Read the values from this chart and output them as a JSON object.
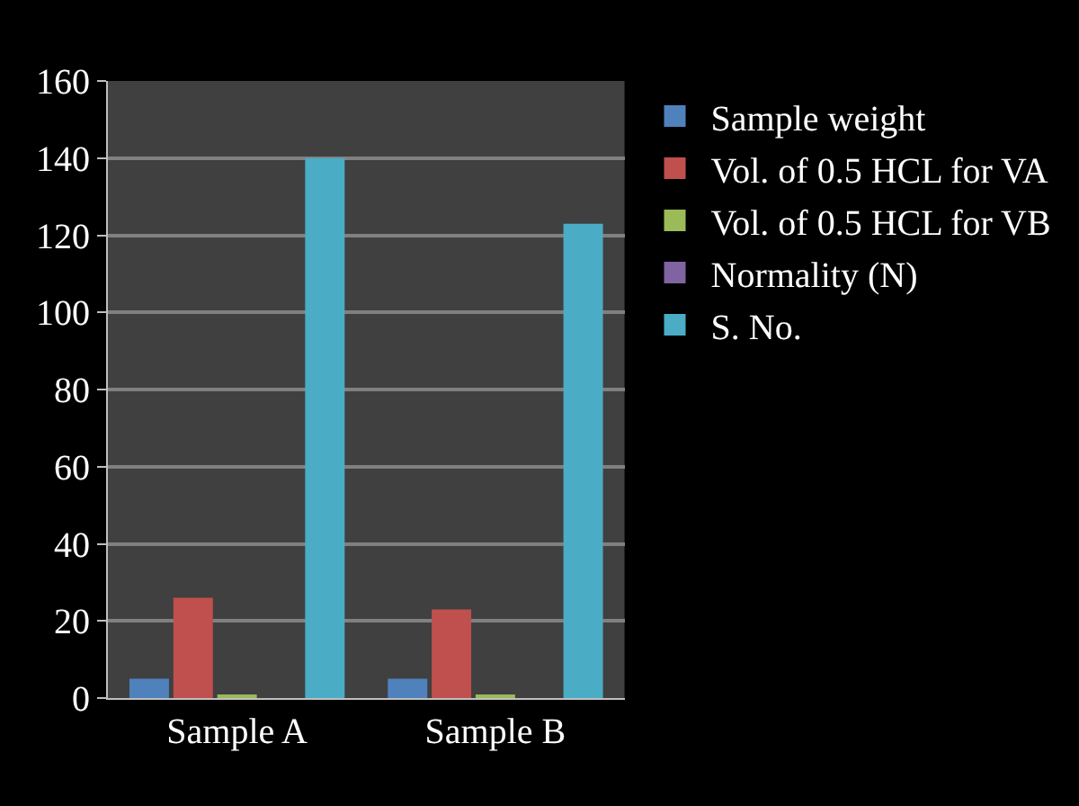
{
  "chart_data": {
    "type": "bar",
    "categories": [
      "Sample A",
      "Sample B"
    ],
    "series": [
      {
        "name": "Sample weight",
        "color": "#4f81bd",
        "values": [
          5,
          5
        ]
      },
      {
        "name": "Vol. of 0.5 HCL for VA",
        "color": "#c0504d",
        "values": [
          26,
          23
        ]
      },
      {
        "name": "Vol. of 0.5 HCL for VB",
        "color": "#9bbb59",
        "values": [
          0.5,
          0.5
        ]
      },
      {
        "name": "Normality (N)",
        "color": "#8064a2",
        "values": [
          null,
          null
        ]
      },
      {
        "name": "S. No.",
        "color": "#4bacc6",
        "values": [
          140,
          123
        ]
      }
    ],
    "ylim": [
      0,
      160
    ],
    "yticks": [
      0,
      20,
      40,
      60,
      80,
      100,
      120,
      140,
      160
    ],
    "grid": "y",
    "legend": "right"
  }
}
